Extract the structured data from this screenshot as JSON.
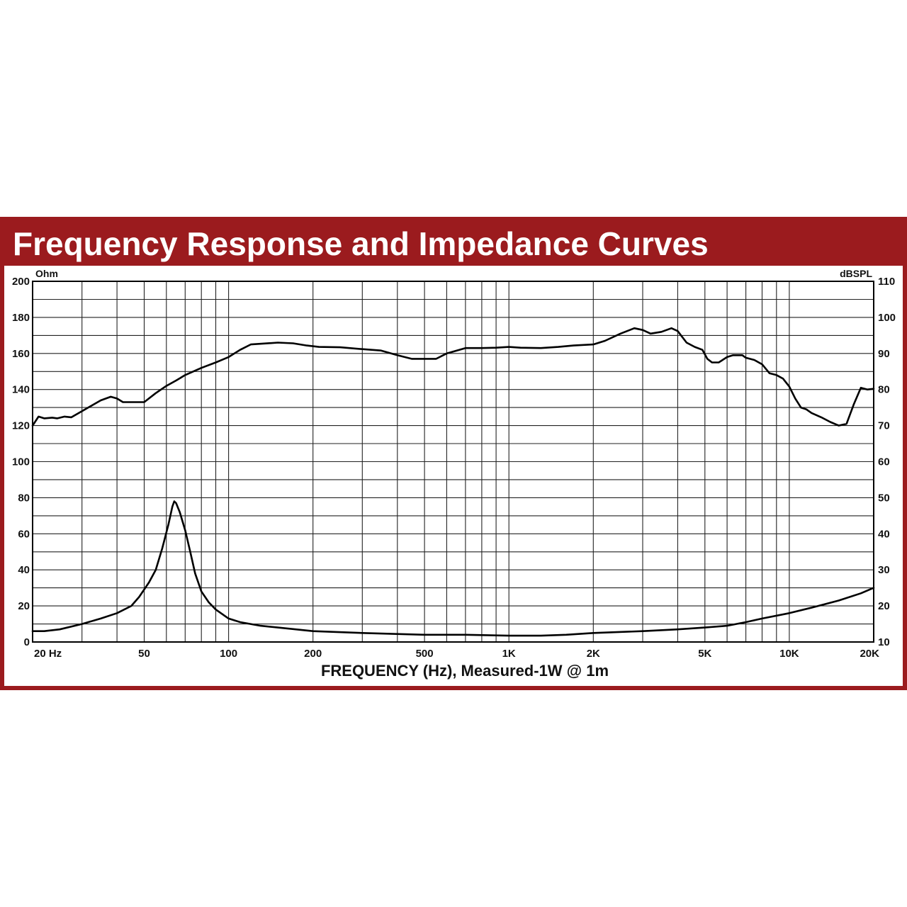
{
  "chart_data": {
    "type": "line",
    "title": "Frequency Response and Impedance Curves",
    "xlabel": "FREQUENCY (Hz), Measured-1W @ 1m",
    "ylabel_left": "Ohm",
    "ylabel_right": "dBSPL",
    "xscale": "log",
    "xlim": [
      20,
      20000
    ],
    "ylim_left": [
      0,
      200
    ],
    "ylim_right": [
      10,
      110
    ],
    "grid": true,
    "legend": "none",
    "x_tick_labels": [
      {
        "value": 20,
        "label": "20 Hz"
      },
      {
        "value": 50,
        "label": "50"
      },
      {
        "value": 100,
        "label": "100"
      },
      {
        "value": 200,
        "label": "200"
      },
      {
        "value": 500,
        "label": "500"
      },
      {
        "value": 1000,
        "label": "1K"
      },
      {
        "value": 2000,
        "label": "2K"
      },
      {
        "value": 5000,
        "label": "5K"
      },
      {
        "value": 10000,
        "label": "10K"
      },
      {
        "value": 20000,
        "label": "20K"
      }
    ],
    "y_left_ticks": [
      0,
      20,
      40,
      60,
      80,
      100,
      120,
      140,
      160,
      180,
      200
    ],
    "y_right_ticks": [
      10,
      20,
      30,
      40,
      50,
      60,
      70,
      80,
      90,
      100,
      110
    ],
    "series": [
      {
        "axis": "right",
        "color": "#000000",
        "points": [
          [
            20,
            70
          ],
          [
            21,
            72.5
          ],
          [
            22,
            72
          ],
          [
            23.5,
            72.2
          ],
          [
            24.5,
            72
          ],
          [
            26,
            72.5
          ],
          [
            27.5,
            72.3
          ],
          [
            30,
            74
          ],
          [
            35,
            77
          ],
          [
            38,
            78
          ],
          [
            40,
            77.5
          ],
          [
            42,
            76.5
          ],
          [
            50,
            76.5
          ],
          [
            55,
            79
          ],
          [
            60,
            81
          ],
          [
            65,
            82.5
          ],
          [
            70,
            84
          ],
          [
            80,
            86
          ],
          [
            90,
            87.5
          ],
          [
            100,
            89
          ],
          [
            110,
            91
          ],
          [
            120,
            92.5
          ],
          [
            150,
            93
          ],
          [
            170,
            92.8
          ],
          [
            190,
            92.2
          ],
          [
            210,
            91.8
          ],
          [
            250,
            91.7
          ],
          [
            300,
            91.2
          ],
          [
            350,
            90.8
          ],
          [
            400,
            89.5
          ],
          [
            450,
            88.5
          ],
          [
            500,
            88.5
          ],
          [
            550,
            88.5
          ],
          [
            600,
            90
          ],
          [
            700,
            91.5
          ],
          [
            800,
            91.5
          ],
          [
            900,
            91.6
          ],
          [
            1000,
            91.8
          ],
          [
            1100,
            91.6
          ],
          [
            1300,
            91.5
          ],
          [
            1500,
            91.8
          ],
          [
            1700,
            92.2
          ],
          [
            2000,
            92.5
          ],
          [
            2200,
            93.5
          ],
          [
            2500,
            95.5
          ],
          [
            2800,
            97
          ],
          [
            3000,
            96.5
          ],
          [
            3200,
            95.5
          ],
          [
            3500,
            96
          ],
          [
            3800,
            97
          ],
          [
            4000,
            96.2
          ],
          [
            4300,
            93
          ],
          [
            4600,
            91.8
          ],
          [
            4900,
            91
          ],
          [
            5100,
            88.5
          ],
          [
            5300,
            87.5
          ],
          [
            5600,
            87.5
          ],
          [
            6000,
            89
          ],
          [
            6300,
            89.5
          ],
          [
            6800,
            89.5
          ],
          [
            7000,
            88.8
          ],
          [
            7500,
            88.2
          ],
          [
            8000,
            87
          ],
          [
            8500,
            84.5
          ],
          [
            9000,
            84
          ],
          [
            9500,
            83
          ],
          [
            10000,
            80.8
          ],
          [
            10500,
            77.5
          ],
          [
            11000,
            75
          ],
          [
            11500,
            74.5
          ],
          [
            12000,
            73.5
          ],
          [
            13000,
            72.3
          ],
          [
            14000,
            71
          ],
          [
            15000,
            70
          ],
          [
            16000,
            70.5
          ],
          [
            17000,
            76
          ],
          [
            18000,
            80.5
          ],
          [
            19000,
            80
          ],
          [
            20000,
            80.2
          ]
        ]
      },
      {
        "axis": "left",
        "color": "#000000",
        "points": [
          [
            20,
            6
          ],
          [
            22,
            6
          ],
          [
            25,
            7
          ],
          [
            30,
            10
          ],
          [
            35,
            13
          ],
          [
            40,
            16
          ],
          [
            45,
            20
          ],
          [
            48,
            25
          ],
          [
            52,
            33
          ],
          [
            55,
            40
          ],
          [
            58,
            52
          ],
          [
            61,
            65
          ],
          [
            63,
            75
          ],
          [
            64,
            78
          ],
          [
            65,
            77
          ],
          [
            67,
            72
          ],
          [
            70,
            62
          ],
          [
            73,
            50
          ],
          [
            76,
            38
          ],
          [
            80,
            28
          ],
          [
            85,
            22
          ],
          [
            90,
            18
          ],
          [
            100,
            13
          ],
          [
            110,
            11
          ],
          [
            130,
            9
          ],
          [
            150,
            8
          ],
          [
            200,
            6
          ],
          [
            300,
            5
          ],
          [
            500,
            4
          ],
          [
            700,
            4
          ],
          [
            1000,
            3.5
          ],
          [
            1300,
            3.5
          ],
          [
            1600,
            4
          ],
          [
            2000,
            5
          ],
          [
            3000,
            6
          ],
          [
            4000,
            7
          ],
          [
            5000,
            8
          ],
          [
            6000,
            9
          ],
          [
            7000,
            11
          ],
          [
            8000,
            13
          ],
          [
            10000,
            16
          ],
          [
            12000,
            19
          ],
          [
            15000,
            23
          ],
          [
            18000,
            27
          ],
          [
            20000,
            30
          ]
        ]
      }
    ]
  }
}
